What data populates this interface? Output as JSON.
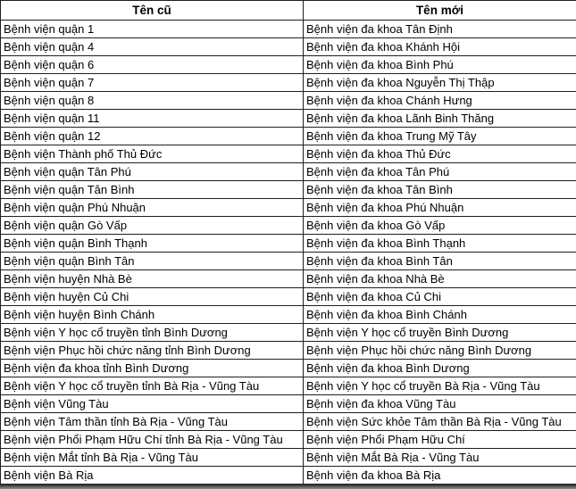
{
  "table": {
    "columns": [
      {
        "label": "Tên cũ"
      },
      {
        "label": "Tên mới"
      }
    ],
    "rows": [
      {
        "old": "Bệnh viện quận 1",
        "new": "Bệnh viện đa khoa Tân Định"
      },
      {
        "old": "Bệnh viện quận 4",
        "new": "Bệnh viện đa khoa Khánh Hội"
      },
      {
        "old": "Bệnh viện quận 6",
        "new": "Bệnh viện đa khoa Bình Phú"
      },
      {
        "old": "Bệnh viện quận 7",
        "new": "Bệnh viện đa khoa Nguyễn Thị Thập"
      },
      {
        "old": "Bệnh viện quận 8",
        "new": "Bệnh viện đa khoa Chánh Hưng"
      },
      {
        "old": "Bệnh viện quận 11",
        "new": "Bệnh viện đa khoa Lãnh Binh Thăng"
      },
      {
        "old": "Bệnh viện quận 12",
        "new": "Bệnh viện đa khoa Trung Mỹ Tây"
      },
      {
        "old": "Bệnh viện Thành phố Thủ Đức",
        "new": "Bệnh viện đa khoa Thủ Đức"
      },
      {
        "old": "Bệnh viện quận Tân Phú",
        "new": "Bệnh viện đa khoa Tân Phú"
      },
      {
        "old": "Bệnh viện quận Tân Bình",
        "new": "Bệnh viện đa khoa Tân Bình"
      },
      {
        "old": "Bệnh viện quận Phú Nhuận",
        "new": "Bệnh viện đa khoa Phú Nhuận"
      },
      {
        "old": "Bệnh viện quận Gò Vấp",
        "new": "Bệnh viện đa khoa Gò Vấp"
      },
      {
        "old": "Bệnh viện quận Bình Thạnh",
        "new": "Bệnh viện đa khoa Bình Thạnh"
      },
      {
        "old": "Bệnh viện quận Bình Tân",
        "new": "Bệnh viện đa khoa Bình Tân"
      },
      {
        "old": "Bệnh viện huyện Nhà Bè",
        "new": "Bệnh viện đa khoa Nhà Bè"
      },
      {
        "old": "Bệnh viện huyện Củ Chi",
        "new": "Bệnh viện đa khoa Củ Chi"
      },
      {
        "old": "Bệnh viện huyện Bình Chánh",
        "new": "Bệnh viện đa khoa Bình Chánh"
      },
      {
        "old": "Bệnh viện Y học cổ truyền tỉnh Bình Dương",
        "new": "Bệnh viện Y học cổ truyền Bình Dương"
      },
      {
        "old": "Bệnh viện Phục hồi chức năng tỉnh Bình Dương",
        "new": "Bệnh viện Phục hồi chức năng Bình Dương"
      },
      {
        "old": "Bệnh viện đa khoa tỉnh Bình Dương",
        "new": "Bệnh viện đa khoa Bình Dương"
      },
      {
        "old": "Bệnh viện Y học cổ truyền tỉnh Bà Rịa - Vũng Tàu",
        "new": "Bệnh viện Y học cổ truyền Bà Rịa - Vũng Tàu"
      },
      {
        "old": "Bệnh viện Vũng Tàu",
        "new": "Bệnh viện đa khoa Vũng Tàu"
      },
      {
        "old": "Bệnh viện Tâm thần tỉnh Bà Rịa - Vũng Tàu",
        "new": "Bệnh viện Sức khỏe Tâm thần Bà Rịa - Vũng Tàu"
      },
      {
        "old": "Bệnh viện Phổi Phạm Hữu Chí tỉnh Bà Rịa - Vũng Tàu",
        "new": "Bệnh viện Phổi Phạm Hữu Chí"
      },
      {
        "old": "Bệnh viện Mắt tỉnh Bà Rịa - Vũng Tàu",
        "new": "Bệnh viện Mắt Bà Rịa - Vũng Tàu"
      },
      {
        "old": "Bệnh viện Bà Rịa",
        "new": "Bệnh viện đa khoa Bà Rịa"
      }
    ]
  },
  "colors": {
    "border": "#1f1f1f",
    "text": "#000000",
    "background": "#ffffff",
    "bottom_strip": "#4a4a4a"
  }
}
